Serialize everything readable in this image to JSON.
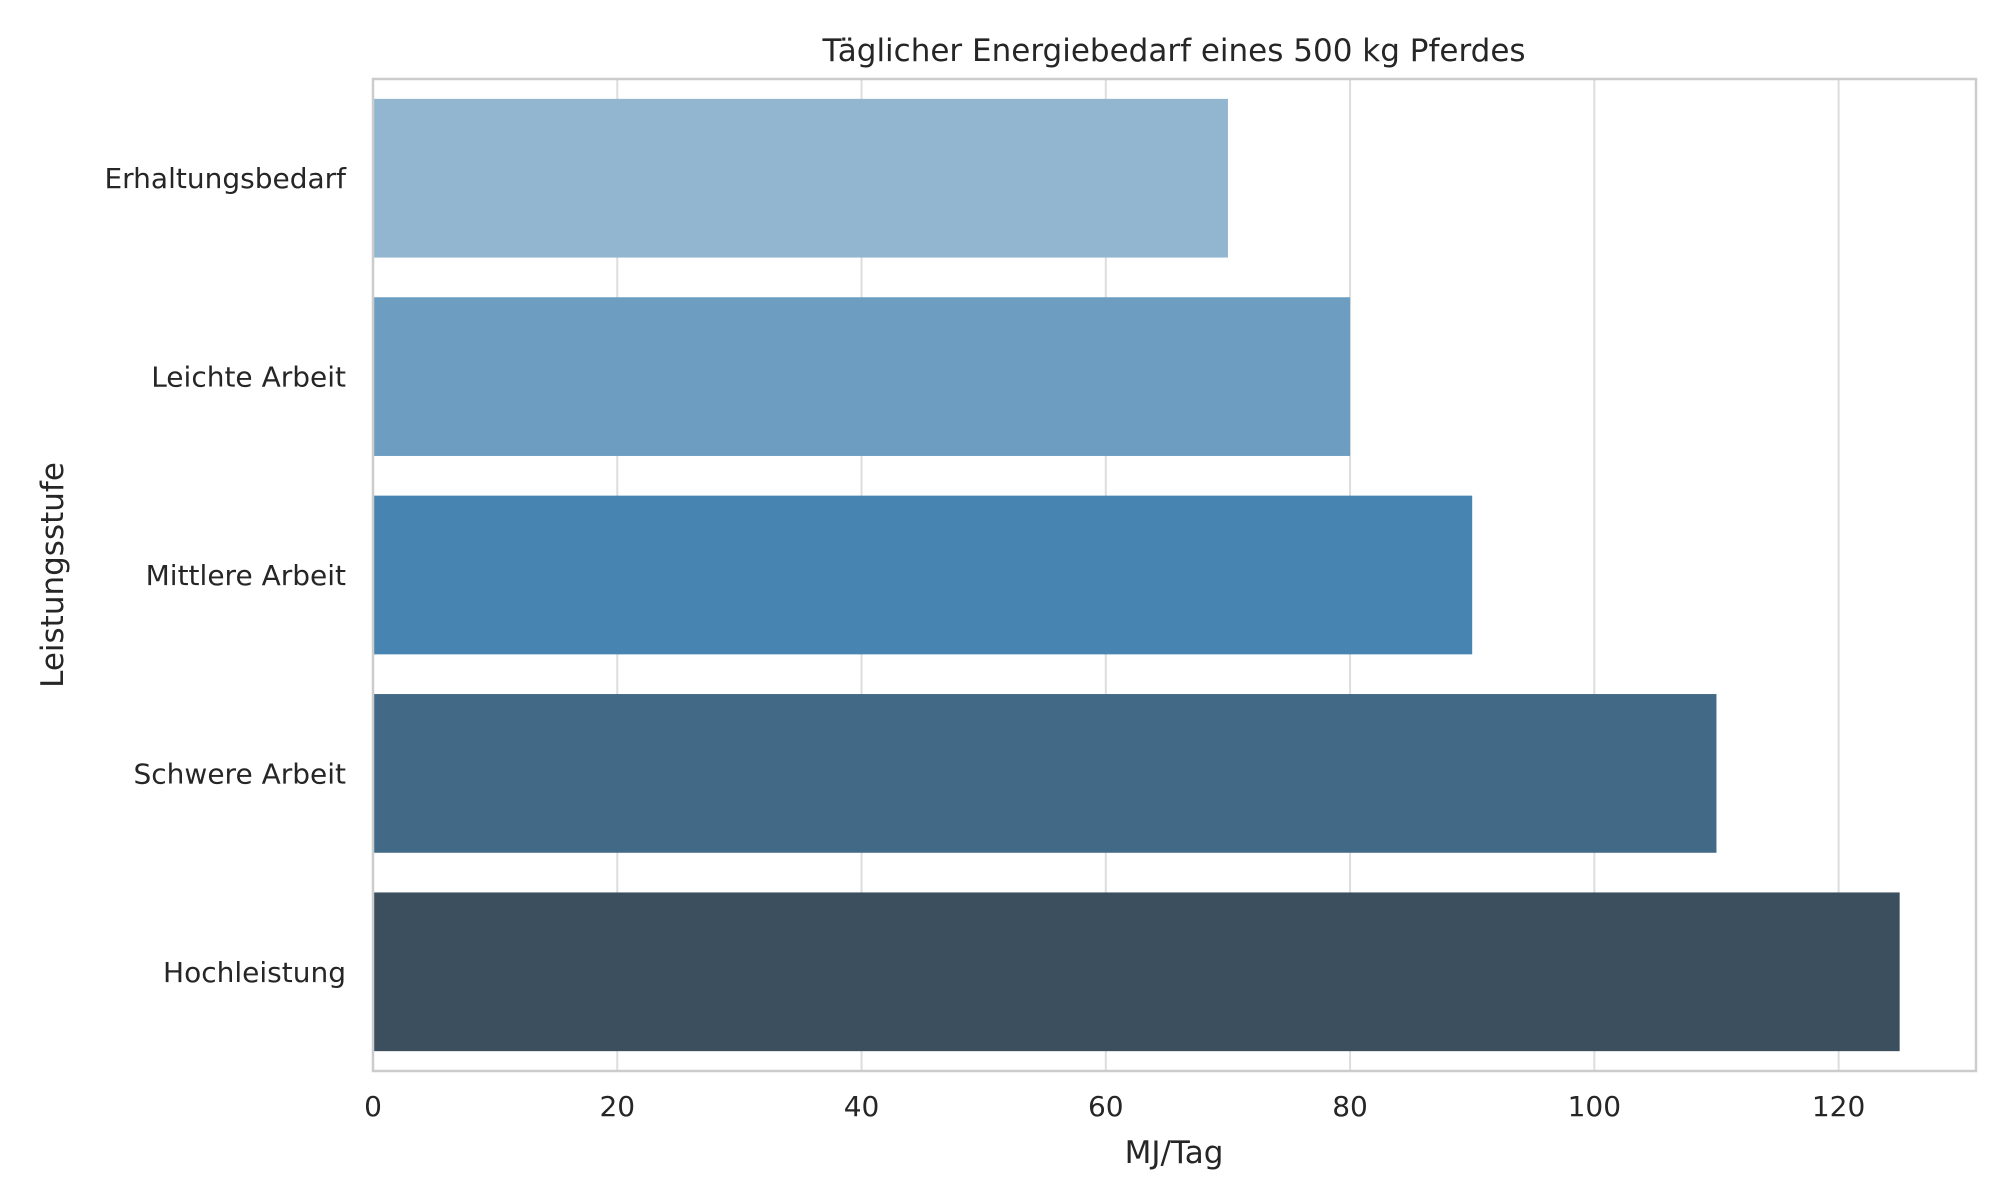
{
  "chart_data": {
    "type": "bar",
    "orientation": "horizontal",
    "title": "Täglicher Energiebedarf eines 500 kg Pferdes",
    "xlabel": "MJ/Tag",
    "ylabel": "Leistungsstufe",
    "categories": [
      "Erhaltungsbedarf",
      "Leichte Arbeit",
      "Mittlere Arbeit",
      "Schwere Arbeit",
      "Hochleistung"
    ],
    "values": [
      70,
      80,
      90,
      110,
      125
    ],
    "colors": [
      "#92b6d0",
      "#6d9ec2",
      "#4884b2",
      "#426a87",
      "#3c4f5e"
    ],
    "xlim": [
      0,
      131.25
    ],
    "xticks": [
      0,
      20,
      40,
      60,
      80,
      100,
      120
    ],
    "grid": "x"
  }
}
